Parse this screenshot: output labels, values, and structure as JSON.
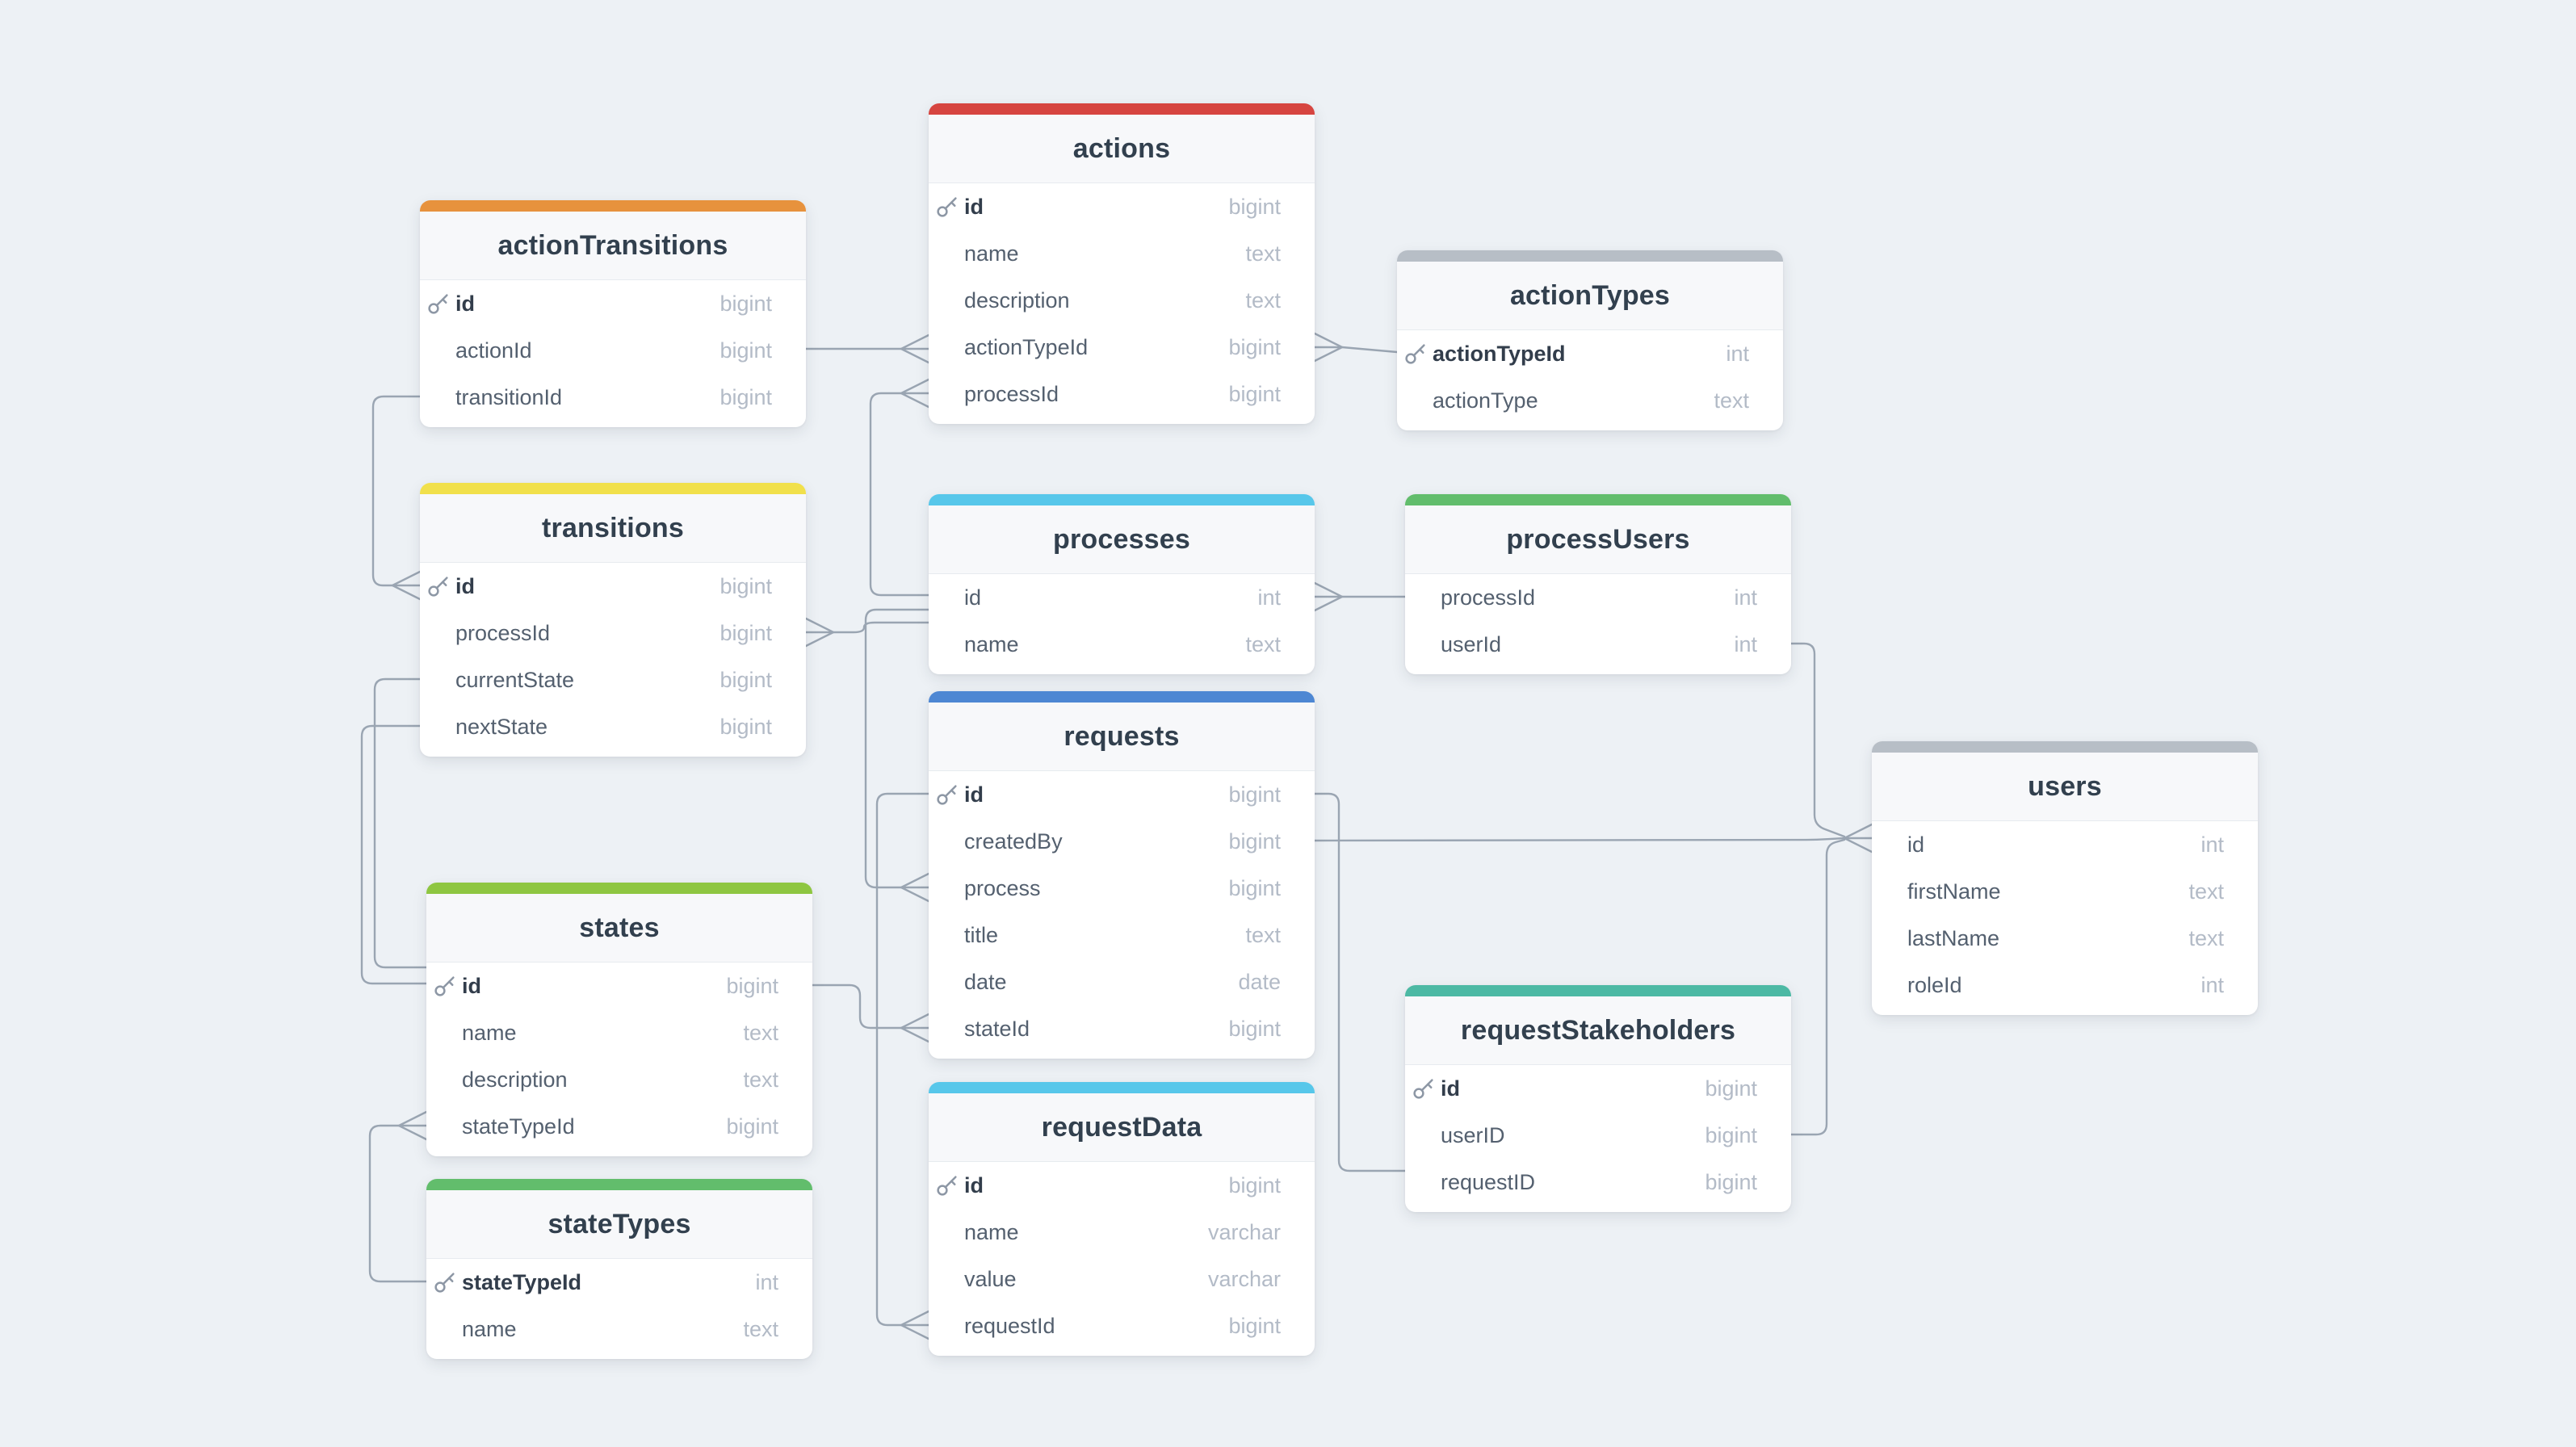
{
  "app": {
    "background_color": "#edf1f5",
    "card_color": "#ffffff",
    "line_color": "#9aa5b2",
    "title_text_color": "#32404e",
    "field_text_color": "#54606f",
    "type_text_color": "#b3bbc7"
  },
  "diagram": {
    "tables": [
      {
        "name": "actionTransitions",
        "header_color": "#e7923d",
        "fields": [
          {
            "name": "id",
            "type": "bigint",
            "key": true
          },
          {
            "name": "actionId",
            "type": "bigint",
            "key": false
          },
          {
            "name": "transitionId",
            "type": "bigint",
            "key": false
          }
        ]
      },
      {
        "name": "actions",
        "header_color": "#d64540",
        "fields": [
          {
            "name": "id",
            "type": "bigint",
            "key": true
          },
          {
            "name": "name",
            "type": "text",
            "key": false
          },
          {
            "name": "description",
            "type": "text",
            "key": false
          },
          {
            "name": "actionTypeId",
            "type": "bigint",
            "key": false
          },
          {
            "name": "processId",
            "type": "bigint",
            "key": false
          }
        ]
      },
      {
        "name": "actionTypes",
        "header_color": "#b7bec6",
        "fields": [
          {
            "name": "actionTypeId",
            "type": "int",
            "key": true
          },
          {
            "name": "actionType",
            "type": "text",
            "key": false
          }
        ]
      },
      {
        "name": "transitions",
        "header_color": "#f1e04b",
        "fields": [
          {
            "name": "id",
            "type": "bigint",
            "key": true
          },
          {
            "name": "processId",
            "type": "bigint",
            "key": false
          },
          {
            "name": "currentState",
            "type": "bigint",
            "key": false
          },
          {
            "name": "nextState",
            "type": "bigint",
            "key": false
          }
        ]
      },
      {
        "name": "processes",
        "header_color": "#57c7ea",
        "fields": [
          {
            "name": "id",
            "type": "int",
            "key": false
          },
          {
            "name": "name",
            "type": "text",
            "key": false
          }
        ]
      },
      {
        "name": "processUsers",
        "header_color": "#62bd6c",
        "fields": [
          {
            "name": "processId",
            "type": "int",
            "key": false
          },
          {
            "name": "userId",
            "type": "int",
            "key": false
          }
        ]
      },
      {
        "name": "requests",
        "header_color": "#4d87d3",
        "fields": [
          {
            "name": "id",
            "type": "bigint",
            "key": true
          },
          {
            "name": "createdBy",
            "type": "bigint",
            "key": false
          },
          {
            "name": "process",
            "type": "bigint",
            "key": false
          },
          {
            "name": "title",
            "type": "text",
            "key": false
          },
          {
            "name": "date",
            "type": "date",
            "key": false
          },
          {
            "name": "stateId",
            "type": "bigint",
            "key": false
          }
        ]
      },
      {
        "name": "users",
        "header_color": "#b7bec6",
        "fields": [
          {
            "name": "id",
            "type": "int",
            "key": false
          },
          {
            "name": "firstName",
            "type": "text",
            "key": false
          },
          {
            "name": "lastName",
            "type": "text",
            "key": false
          },
          {
            "name": "roleId",
            "type": "int",
            "key": false
          }
        ]
      },
      {
        "name": "states",
        "header_color": "#8ec641",
        "fields": [
          {
            "name": "id",
            "type": "bigint",
            "key": true
          },
          {
            "name": "name",
            "type": "text",
            "key": false
          },
          {
            "name": "description",
            "type": "text",
            "key": false
          },
          {
            "name": "stateTypeId",
            "type": "bigint",
            "key": false
          }
        ]
      },
      {
        "name": "requestStakeholders",
        "header_color": "#4cb9a4",
        "fields": [
          {
            "name": "id",
            "type": "bigint",
            "key": true
          },
          {
            "name": "userID",
            "type": "bigint",
            "key": false
          },
          {
            "name": "requestID",
            "type": "bigint",
            "key": false
          }
        ]
      },
      {
        "name": "requestData",
        "header_color": "#57c7ea",
        "fields": [
          {
            "name": "id",
            "type": "bigint",
            "key": true
          },
          {
            "name": "name",
            "type": "varchar",
            "key": false
          },
          {
            "name": "value",
            "type": "varchar",
            "key": false
          },
          {
            "name": "requestId",
            "type": "bigint",
            "key": false
          }
        ]
      },
      {
        "name": "stateTypes",
        "header_color": "#62bd6c",
        "fields": [
          {
            "name": "stateTypeId",
            "type": "int",
            "key": true
          },
          {
            "name": "name",
            "type": "text",
            "key": false
          }
        ]
      }
    ],
    "relationships": [
      {
        "from": {
          "table": "actionTransitions",
          "field": "actionId"
        },
        "to": {
          "table": "actions",
          "field": "id"
        }
      },
      {
        "from": {
          "table": "actions",
          "field": "processId"
        },
        "to": {
          "table": "processes",
          "field": "id"
        }
      },
      {
        "from": {
          "table": "actions",
          "field": "actionTypeId"
        },
        "to": {
          "table": "actionTypes",
          "field": "actionTypeId"
        }
      },
      {
        "from": {
          "table": "actionTransitions",
          "field": "transitionId"
        },
        "to": {
          "table": "transitions",
          "field": "id"
        }
      },
      {
        "from": {
          "table": "transitions",
          "field": "processId"
        },
        "to": {
          "table": "processes",
          "field": "id"
        }
      },
      {
        "from": {
          "table": "transitions",
          "field": "currentState"
        },
        "to": {
          "table": "states",
          "field": "id"
        }
      },
      {
        "from": {
          "table": "transitions",
          "field": "nextState"
        },
        "to": {
          "table": "states",
          "field": "id"
        }
      },
      {
        "from": {
          "table": "states",
          "field": "stateTypeId"
        },
        "to": {
          "table": "stateTypes",
          "field": "stateTypeId"
        }
      },
      {
        "from": {
          "table": "states",
          "field": "id"
        },
        "to": {
          "table": "requests",
          "field": "stateId"
        }
      },
      {
        "from": {
          "table": "processes",
          "field": "id"
        },
        "to": {
          "table": "requests",
          "field": "process"
        }
      },
      {
        "from": {
          "table": "requestData",
          "field": "requestId"
        },
        "to": {
          "table": "requests",
          "field": "id"
        }
      },
      {
        "from": {
          "table": "requests",
          "field": "id"
        },
        "to": {
          "table": "requestStakeholders",
          "field": "requestID"
        }
      },
      {
        "from": {
          "table": "requests",
          "field": "createdBy"
        },
        "to": {
          "table": "users",
          "field": "id"
        }
      },
      {
        "from": {
          "table": "processUsers",
          "field": "userId"
        },
        "to": {
          "table": "users",
          "field": "id"
        }
      },
      {
        "from": {
          "table": "requestStakeholders",
          "field": "userID"
        },
        "to": {
          "table": "users",
          "field": "id"
        }
      },
      {
        "from": {
          "table": "processes",
          "field": "id"
        },
        "to": {
          "table": "processUsers",
          "field": "processId"
        }
      }
    ]
  }
}
